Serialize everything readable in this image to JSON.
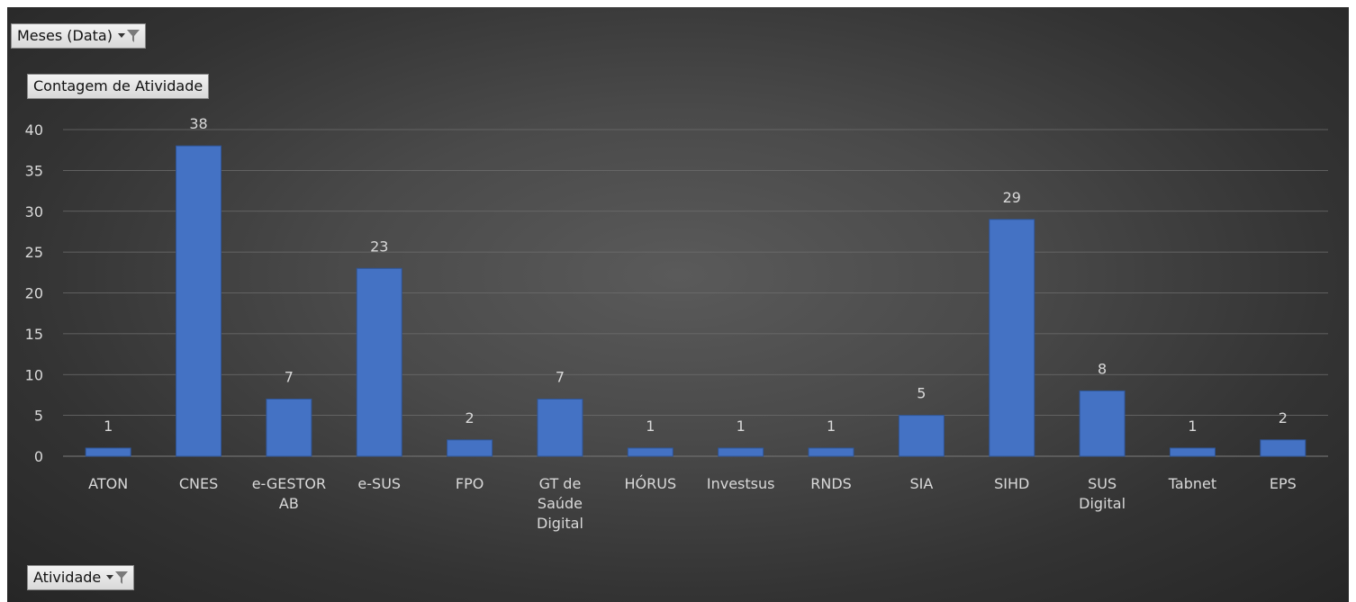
{
  "filters": {
    "month_label": "Meses (Data)",
    "activity_label": "Atividade"
  },
  "value_field_label": "Contagem de Atividade",
  "colors": {
    "bar": "#4472c4",
    "bar_edge": "#2f5597",
    "grid": "#6e6e6e",
    "text": "#d9d9d9"
  },
  "chart_data": {
    "type": "bar",
    "categories": [
      [
        "ATON"
      ],
      [
        "CNES"
      ],
      [
        "e-GESTOR",
        "AB"
      ],
      [
        "e-SUS"
      ],
      [
        "FPO"
      ],
      [
        "GT de",
        "Saúde",
        "Digital"
      ],
      [
        "HÓRUS"
      ],
      [
        "Investsus"
      ],
      [
        "RNDS"
      ],
      [
        "SIA"
      ],
      [
        "SIHD"
      ],
      [
        "SUS",
        "Digital"
      ],
      [
        "Tabnet"
      ],
      [
        "EPS"
      ]
    ],
    "series": [
      {
        "values": [
          1,
          38,
          7,
          23,
          2,
          7,
          1,
          1,
          1,
          5,
          29,
          8,
          1,
          2
        ]
      }
    ],
    "ylim": [
      0,
      40
    ],
    "yticks": [
      0,
      5,
      10,
      15,
      20,
      25,
      30,
      35,
      40
    ],
    "grid": true,
    "data_labels": true,
    "legend": "none"
  }
}
